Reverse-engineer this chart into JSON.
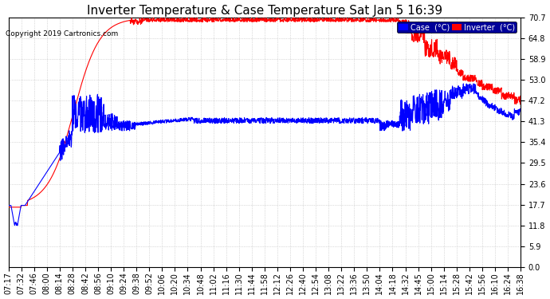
{
  "title": "Inverter Temperature & Case Temperature Sat Jan 5 16:39",
  "copyright": "Copyright 2019 Cartronics.com",
  "legend_case_label": "Case  (°C)",
  "legend_inverter_label": "Inverter  (°C)",
  "case_color": "#0000FF",
  "inverter_color": "#FF0000",
  "background_color": "#ffffff",
  "plot_bg_color": "#ffffff",
  "grid_color": "#bbbbbb",
  "ylim": [
    0.0,
    70.7
  ],
  "yticks": [
    0.0,
    5.9,
    11.8,
    17.7,
    23.6,
    29.5,
    35.4,
    41.3,
    47.2,
    53.0,
    58.9,
    64.8,
    70.7
  ],
  "title_fontsize": 11,
  "tick_fontsize": 7,
  "xtick_labels": [
    "07:17",
    "07:32",
    "07:46",
    "08:00",
    "08:14",
    "08:28",
    "08:42",
    "08:56",
    "09:10",
    "09:24",
    "09:38",
    "09:52",
    "10:06",
    "10:20",
    "10:34",
    "10:48",
    "11:02",
    "11:16",
    "11:30",
    "11:44",
    "11:58",
    "12:12",
    "12:26",
    "12:40",
    "12:54",
    "13:08",
    "13:22",
    "13:36",
    "13:50",
    "14:04",
    "14:18",
    "14:32",
    "14:45",
    "15:00",
    "15:14",
    "15:28",
    "15:42",
    "15:56",
    "16:10",
    "16:24",
    "16:38"
  ],
  "line_width": 0.8,
  "n_points": 2000,
  "figsize": [
    6.9,
    3.75
  ],
  "dpi": 100
}
